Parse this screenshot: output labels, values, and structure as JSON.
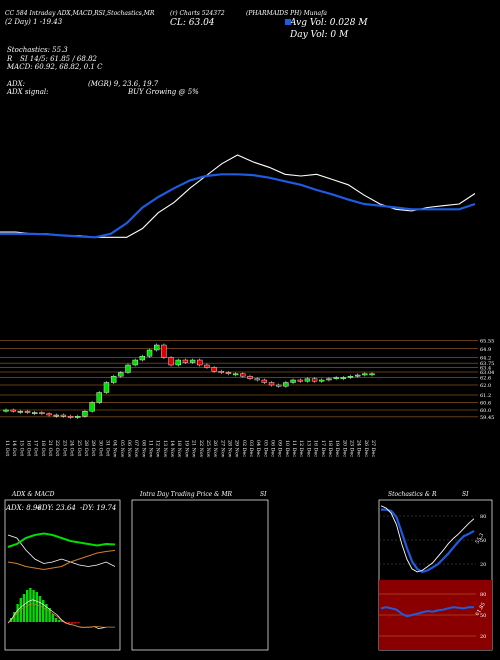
{
  "header": {
    "line1_left": "CC 584 Intraday ADX,MACD,RSI,Stochastics,MR",
    "line1_mid": "(r) Charts 524372",
    "line1_right": "(PHARMAIDS PH) Munafa",
    "cl_label": "CL: 63.04",
    "avg_vol": "Avg Vol: 0.028  M",
    "day_vol": "Day Vol: 0   M",
    "date_label": "(2  Day) 1   ‑19.43",
    "stoch_label": "Stochastics: 55.3",
    "r_label": "R",
    "si_label": "SI 14/5: 61.85 / 68.82",
    "macd_label": "MACD: 60.92, 68.82, 0.1  C",
    "adx_label": "ADX:",
    "mrg_label": "(MGR) 9, 23.6, 19.7",
    "adx_signal_label": "ADX  signal:",
    "buy_label": "BUY Growing @ 5%"
  },
  "colors": {
    "background": "#000000",
    "up_candle": "#00dd00",
    "down_candle": "#dd0000",
    "ma_blue": "#1e5be0",
    "resistance": "#c47a2a",
    "rsi_red_bg": "#8a0000"
  },
  "chart_data": [
    {
      "type": "line",
      "name": "moving averages",
      "series": [
        {
          "color": "#ffffff",
          "values": [
            60.1,
            60.1,
            60.0,
            60.0,
            59.9,
            59.9,
            59.8,
            59.8,
            59.8,
            60.3,
            61.2,
            61.8,
            62.6,
            63.3,
            64.0,
            64.5,
            64.1,
            63.8,
            63.4,
            63.3,
            63.4,
            63.1,
            62.8,
            62.2,
            61.7,
            61.4,
            61.3,
            61.5,
            61.6,
            61.7,
            62.3
          ]
        },
        {
          "color": "#1e5be0",
          "values": [
            60.0,
            60.0,
            59.99,
            59.97,
            59.9,
            59.85,
            59.8,
            60.0,
            60.6,
            61.5,
            62.1,
            62.6,
            63.05,
            63.3,
            63.4,
            63.4,
            63.35,
            63.2,
            63.0,
            62.8,
            62.5,
            62.25,
            61.95,
            61.7,
            61.6,
            61.5,
            61.4,
            61.4,
            61.4,
            61.4,
            61.7
          ]
        }
      ]
    },
    {
      "type": "candlestick",
      "x": [
        "11 Oct",
        "14 Oct",
        "15 Oct",
        "16 Oct",
        "17 Oct",
        "18 Oct",
        "21 Oct",
        "22 Oct",
        "23 Oct",
        "24 Oct",
        "25 Oct",
        "28 Oct",
        "29 Oct",
        "30 Oct",
        "31 Oct",
        "04 Nov",
        "05 Nov",
        "06 Nov",
        "07 Nov",
        "08 Nov",
        "11 Nov",
        "12 Nov",
        "13 Nov",
        "14 Nov",
        "18 Nov",
        "19 Nov",
        "21 Nov",
        "22 Nov",
        "25 Nov",
        "26 Nov",
        "27 Nov",
        "28 Nov",
        "29 Nov",
        "02 Dec",
        "03 Dec",
        "04 Dec",
        "05 Dec",
        "06 Dec",
        "09 Dec",
        "10 Dec",
        "11 Dec",
        "12 Dec",
        "13 Dec",
        "16 Dec",
        "17 Dec",
        "18 Dec",
        "19 Dec",
        "20 Dec",
        "23 Dec",
        "24 Dec",
        "26 Dec",
        "27 Dec"
      ],
      "candles": [
        {
          "o": 60.0,
          "c": 60.0
        },
        {
          "o": 60.0,
          "c": 59.9
        },
        {
          "o": 59.9,
          "c": 59.9
        },
        {
          "o": 59.9,
          "c": 59.8
        },
        {
          "o": 59.8,
          "c": 59.8
        },
        {
          "o": 59.8,
          "c": 59.7
        },
        {
          "o": 59.7,
          "c": 59.6
        },
        {
          "o": 59.6,
          "c": 59.6
        },
        {
          "o": 59.6,
          "c": 59.5
        },
        {
          "o": 59.5,
          "c": 59.4
        },
        {
          "o": 59.4,
          "c": 59.5
        },
        {
          "o": 59.5,
          "c": 59.9
        },
        {
          "o": 59.9,
          "c": 60.6
        },
        {
          "o": 60.6,
          "c": 61.4
        },
        {
          "o": 61.4,
          "c": 62.2
        },
        {
          "o": 62.2,
          "c": 62.7
        },
        {
          "o": 62.7,
          "c": 63.0
        },
        {
          "o": 63.0,
          "c": 63.6
        },
        {
          "o": 63.6,
          "c": 64.0
        },
        {
          "o": 64.0,
          "c": 64.3
        },
        {
          "o": 64.3,
          "c": 64.8
        },
        {
          "o": 64.8,
          "c": 65.2
        },
        {
          "o": 65.2,
          "c": 64.2
        },
        {
          "o": 64.2,
          "c": 63.6
        },
        {
          "o": 63.6,
          "c": 64.0
        },
        {
          "o": 64.0,
          "c": 63.8
        },
        {
          "o": 63.8,
          "c": 64.0
        },
        {
          "o": 64.0,
          "c": 63.6
        },
        {
          "o": 63.6,
          "c": 63.4
        },
        {
          "o": 63.4,
          "c": 63.1
        },
        {
          "o": 63.1,
          "c": 63.0
        },
        {
          "o": 63.0,
          "c": 62.9
        },
        {
          "o": 62.9,
          "c": 62.9
        },
        {
          "o": 62.9,
          "c": 62.7
        },
        {
          "o": 62.7,
          "c": 62.5
        },
        {
          "o": 62.5,
          "c": 62.4
        },
        {
          "o": 62.4,
          "c": 62.2
        },
        {
          "o": 62.2,
          "c": 62.0
        },
        {
          "o": 62.0,
          "c": 61.9
        },
        {
          "o": 61.9,
          "c": 62.2
        },
        {
          "o": 62.2,
          "c": 62.4
        },
        {
          "o": 62.4,
          "c": 62.3
        },
        {
          "o": 62.3,
          "c": 62.5
        },
        {
          "o": 62.5,
          "c": 62.3
        },
        {
          "o": 62.3,
          "c": 62.4
        },
        {
          "o": 62.4,
          "c": 62.5
        },
        {
          "o": 62.5,
          "c": 62.6
        },
        {
          "o": 62.6,
          "c": 62.6
        },
        {
          "o": 62.6,
          "c": 62.7
        },
        {
          "o": 62.7,
          "c": 62.8
        },
        {
          "o": 62.8,
          "c": 62.9
        },
        {
          "o": 62.9,
          "c": 62.9
        }
      ],
      "price_levels": [
        "65.55",
        "64.9",
        "64.2",
        "63.75",
        "63.4",
        "63.04",
        "62.6",
        "62.0",
        "61.2",
        "60.6",
        "60.0",
        "59.45"
      ],
      "ylim": [
        58.8,
        66.0
      ]
    },
    {
      "type": "line",
      "name": "ADX & MACD",
      "title": "ADX  & MACD",
      "adx_text": "ADX: 8.98",
      "plus_di_text": "+DY: 23.64",
      "minus_di_text": "-DY: 19.74",
      "adx": [
        30,
        28,
        20,
        14,
        11,
        12,
        14,
        12,
        10,
        9,
        10,
        12,
        9
      ],
      "plus_di": [
        22,
        24,
        28,
        30,
        31,
        30,
        28,
        26,
        25,
        24,
        23,
        24,
        23.64
      ],
      "minus_di": [
        12,
        11,
        9,
        8,
        7,
        8,
        9,
        12,
        14,
        16,
        18,
        19,
        19.74
      ],
      "macd_hist": [
        0.2,
        0.5,
        0.9,
        1.2,
        1.4,
        1.6,
        1.7,
        1.6,
        1.5,
        1.3,
        1.1,
        0.9,
        0.7,
        0.4,
        0.2,
        0.1,
        0.05,
        -0.05,
        -0.1,
        -0.1,
        -0.08,
        -0.05
      ]
    },
    {
      "type": "table",
      "name": "Intra Day Trading Price & MRSI",
      "title": "Intra  Day Trading Price  & MR",
      "title_suffix": "SI"
    },
    {
      "type": "line",
      "name": "Stochastics & RSI",
      "title": "Stochastics & R",
      "title_suffix": "SI",
      "stoch_ticks": [
        "80",
        "50",
        "20"
      ],
      "stoch_k": [
        95,
        92,
        85,
        70,
        45,
        25,
        12,
        8,
        10,
        15,
        20,
        28,
        36,
        45,
        52,
        58,
        65,
        72,
        78
      ],
      "stoch_d": [
        90,
        90,
        88,
        80,
        60,
        40,
        22,
        12,
        8,
        10,
        14,
        18,
        25,
        32,
        40,
        48,
        55,
        58,
        62
      ],
      "stoch_value": "55.3",
      "rsi_ticks": [
        "80",
        "50",
        "20"
      ],
      "rsi_value": "61.85",
      "rsi": [
        60,
        62,
        60,
        58,
        52,
        48,
        50,
        52,
        54,
        56,
        55,
        57,
        58,
        60,
        62,
        61,
        60,
        62,
        61.85
      ]
    }
  ]
}
